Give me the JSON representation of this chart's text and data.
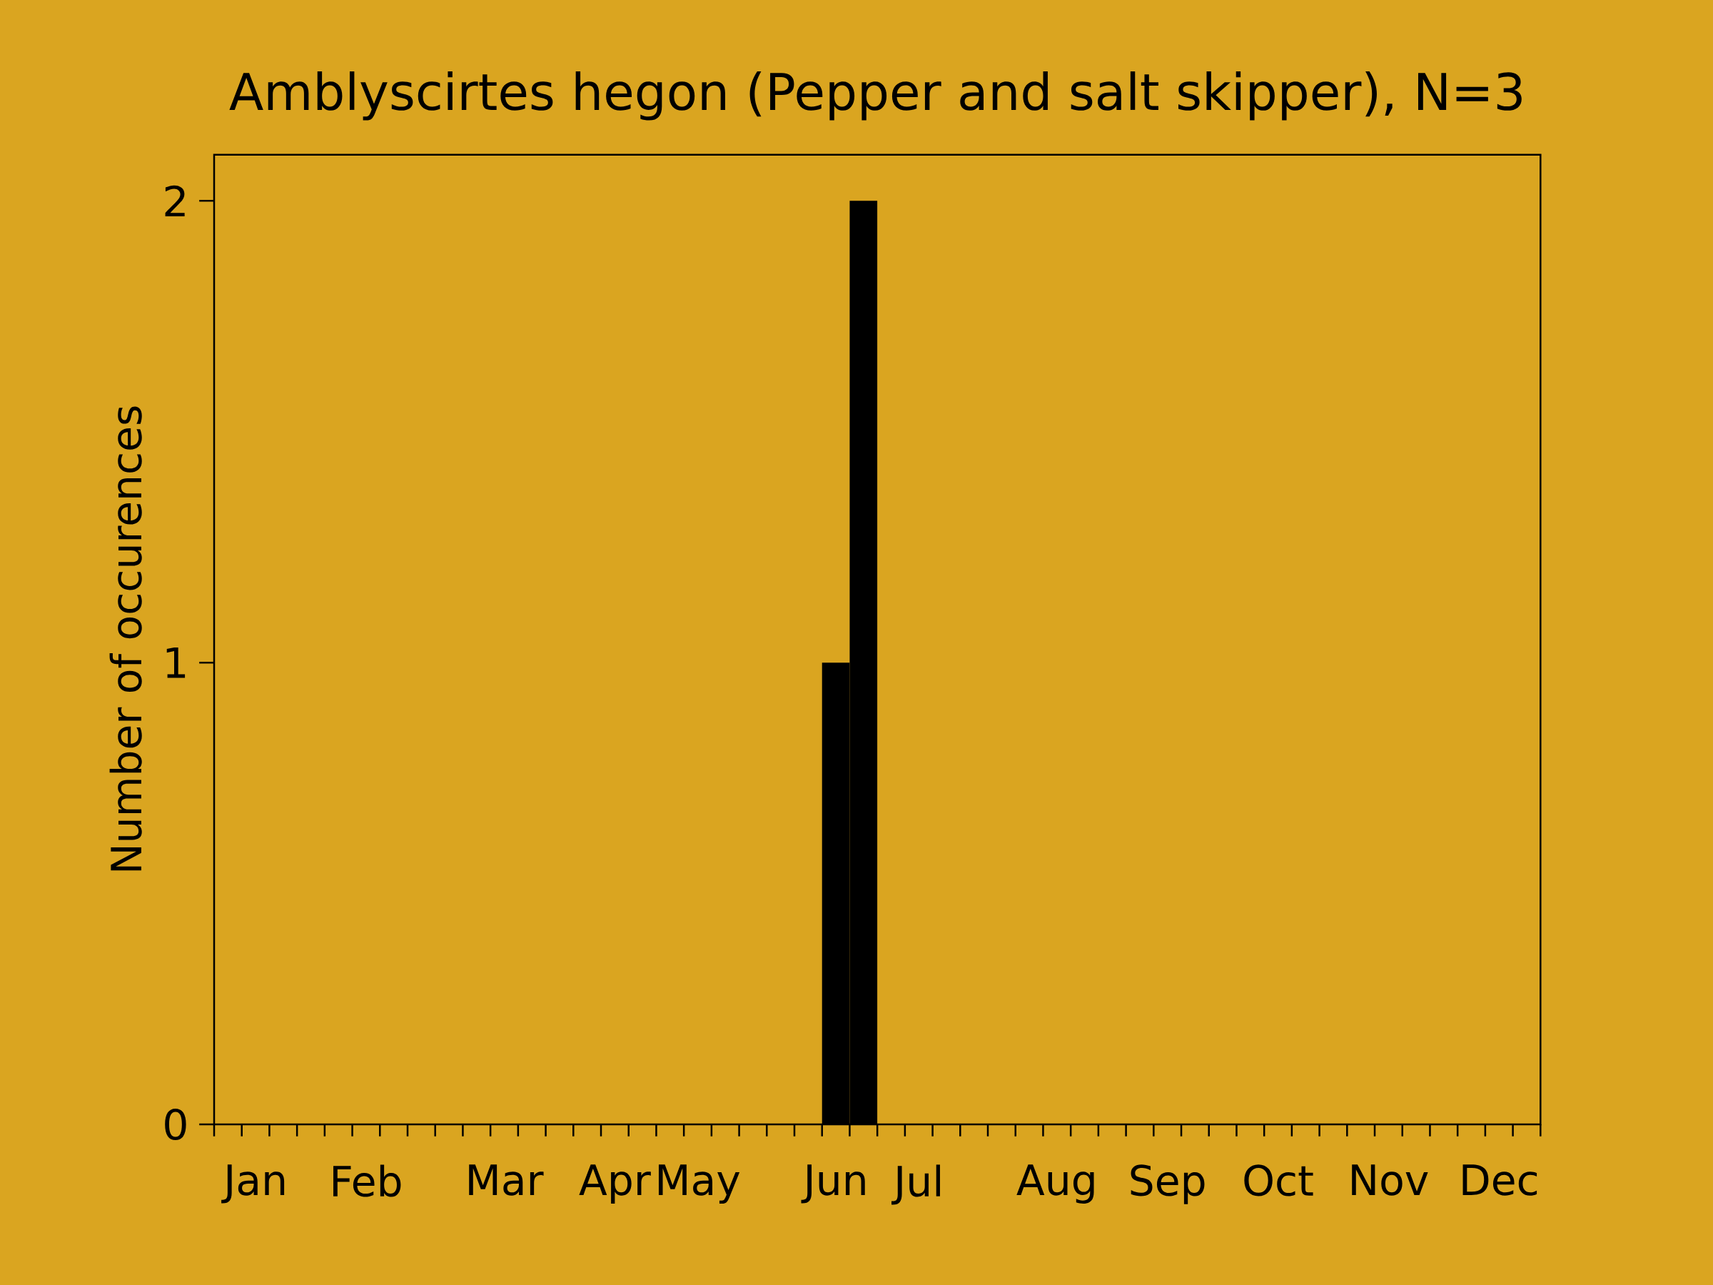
{
  "chart_data": {
    "type": "bar",
    "title": "Amblyscirtes hegon (Pepper and salt skipper), N=3",
    "ylabel": "Number of occurences",
    "categories": [
      null,
      "Jan",
      null,
      null,
      null,
      "Feb",
      null,
      null,
      null,
      null,
      "Mar",
      null,
      null,
      null,
      "Apr",
      null,
      null,
      "May",
      null,
      null,
      null,
      null,
      "Jun",
      null,
      null,
      "Jul",
      null,
      null,
      null,
      null,
      "Aug",
      null,
      null,
      null,
      "Sep",
      null,
      null,
      null,
      "Oct",
      null,
      null,
      null,
      "Nov",
      null,
      null,
      null,
      "Dec",
      null
    ],
    "values": [
      0,
      0,
      0,
      0,
      0,
      0,
      0,
      0,
      0,
      0,
      0,
      0,
      0,
      0,
      0,
      0,
      0,
      0,
      0,
      0,
      0,
      0,
      1,
      2,
      0,
      0,
      0,
      0,
      0,
      0,
      0,
      0,
      0,
      0,
      0,
      0,
      0,
      0,
      0,
      0,
      0,
      0,
      0,
      0,
      0,
      0,
      0,
      0
    ],
    "color": "#000000",
    "ylim": [
      0,
      2.1
    ],
    "yticks": [
      0,
      1,
      2
    ]
  }
}
